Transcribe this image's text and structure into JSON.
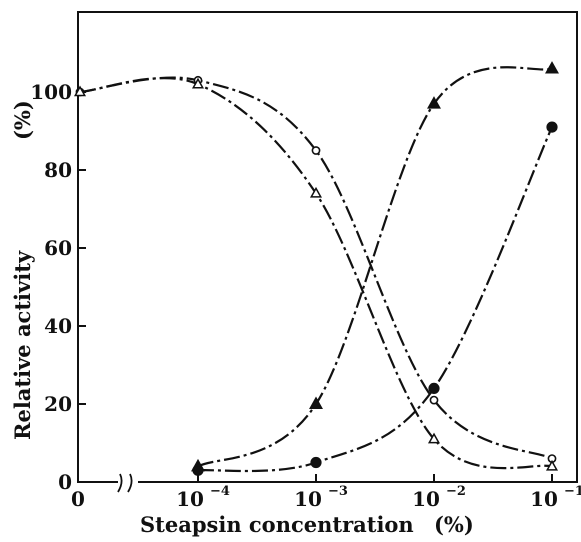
{
  "chart_data": {
    "type": "line",
    "title": "",
    "xlabel": "Steapsin concentration",
    "xlabel_unit": "(%)",
    "ylabel": "Relative activity",
    "ylabel_unit": "(%)",
    "xscale": "log",
    "x_zero_break": true,
    "ylim": [
      0,
      115
    ],
    "grid": false,
    "yticks": [
      0,
      20,
      40,
      60,
      80,
      100
    ],
    "ytick_labels": [
      "0",
      "20",
      "40",
      "60",
      "80",
      "100"
    ],
    "xtick_labels": [
      {
        "label": "0",
        "base": "0",
        "exp": ""
      },
      {
        "label": "10^-4",
        "base": "10",
        "exp": "−4"
      },
      {
        "label": "10^-3",
        "base": "10",
        "exp": "−3"
      },
      {
        "label": "10^-2",
        "base": "10",
        "exp": "−2"
      },
      {
        "label": "10^-1",
        "base": "10",
        "exp": "−1"
      }
    ],
    "series": [
      {
        "marker": "open-circle",
        "x": [
          0,
          0.0001,
          0.001,
          0.01,
          0.1
        ],
        "y": [
          100,
          103,
          85,
          21,
          6
        ]
      },
      {
        "marker": "open-triangle",
        "x": [
          0,
          0.0001,
          0.001,
          0.01,
          0.1
        ],
        "y": [
          100,
          102,
          74,
          11,
          4
        ]
      },
      {
        "marker": "filled-triangle",
        "x": [
          0.0001,
          0.001,
          0.01,
          0.1
        ],
        "y": [
          4,
          20,
          97,
          106
        ]
      },
      {
        "marker": "filled-circle",
        "x": [
          0.0001,
          0.001,
          0.01,
          0.1
        ],
        "y": [
          3,
          5,
          24,
          91
        ]
      }
    ]
  }
}
